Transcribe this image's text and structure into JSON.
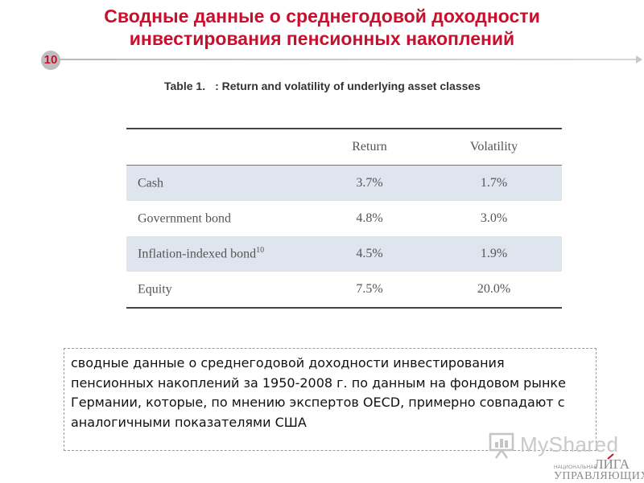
{
  "slide": {
    "title_line1": "Сводные данные о среднегодовой доходности",
    "title_line2": "инвестирования пенсионных накоплений",
    "page_number": "10"
  },
  "table": {
    "caption_label": "Table 1.",
    "caption_text": ": Return and volatility of underlying asset classes",
    "headers": [
      "",
      "Return",
      "Volatility"
    ],
    "rows": [
      {
        "label": "Cash",
        "superscript": "",
        "return": "3.7%",
        "volatility": "1.7%"
      },
      {
        "label": "Government bond",
        "superscript": "",
        "return": "4.8%",
        "volatility": "3.0%"
      },
      {
        "label": "Inflation-indexed bond",
        "superscript": "10",
        "return": "4.5%",
        "volatility": "1.9%"
      },
      {
        "label": "Equity",
        "superscript": "",
        "return": "7.5%",
        "volatility": "20.0%"
      }
    ]
  },
  "note": {
    "text": "сводные данные о среднегодовой доходности инвестирования пенсионных накоплений за 1950-2008 г. по данным на фондовом рынке Германии, которые, по мнению экспертов OECD, примерно совпадают с аналогичными показателями США"
  },
  "watermark": {
    "text": "MyShared",
    "icon": "presentation-board-icon"
  },
  "logo": {
    "small_text": "НАЦИОНАЛЬНАЯ",
    "big_text": "ЛИГА",
    "bottom_text": "УПРАВЛЯЮЩИХ"
  },
  "colors": {
    "title": "#c8102e",
    "row_shade": "#dfe5ee",
    "page_badge": "#bdbdbd"
  }
}
